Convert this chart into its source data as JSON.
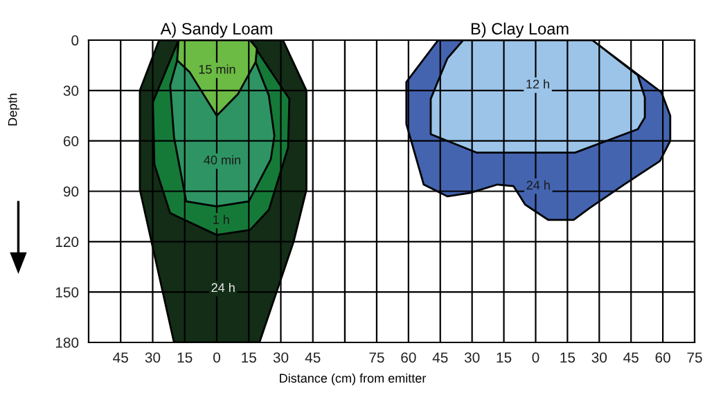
{
  "chart_data": [
    {
      "type": "area",
      "title": "A) Sandy Loam",
      "ylabel": "Depth",
      "xlabel": "Distance (cm) from emitter",
      "xlim": [
        -60,
        60
      ],
      "ylim": [
        180,
        0
      ],
      "xticks": [
        {
          "value": -45,
          "label": "45"
        },
        {
          "value": -30,
          "label": "30"
        },
        {
          "value": -15,
          "label": "15"
        },
        0,
        15,
        30,
        45
      ],
      "yticks": [
        0,
        30,
        60,
        90,
        120,
        150,
        180
      ],
      "grid": true,
      "legend": false,
      "series": [
        {
          "name": "24 h",
          "color": "#132d17",
          "x": [
            -27,
            -36,
            -36,
            -20,
            20,
            36,
            42,
            42,
            31
          ],
          "values": [
            0,
            30,
            89,
            180,
            180,
            120,
            89,
            30,
            0
          ]
        },
        {
          "name": "1 h",
          "color": "#157a38",
          "x": [
            -17.9,
            -29.9,
            -29.2,
            -21.8,
            0,
            15.6,
            24.4,
            33.4,
            34,
            15.6
          ],
          "values": [
            0,
            37,
            74,
            103,
            116,
            113,
            101,
            64,
            35,
            0
          ]
        },
        {
          "name": "40 min",
          "color": "#2e9464",
          "x": [
            -17.9,
            -18.5,
            -21.8,
            -20,
            -14.3,
            0,
            15,
            25.3,
            27,
            24.4,
            18.2,
            18.8,
            15.6
          ],
          "values": [
            0,
            12,
            27,
            58,
            96,
            99,
            96,
            71,
            57,
            33,
            13,
            5,
            0
          ]
        },
        {
          "name": "15 min",
          "color": "#6cbb44",
          "x": [
            -17.9,
            -18.5,
            -12.7,
            0,
            10,
            18.2,
            18.8,
            15.6
          ],
          "values": [
            0,
            12,
            19,
            45,
            32,
            13,
            5,
            0
          ]
        }
      ]
    },
    {
      "type": "area",
      "title": "B) Clay Loam",
      "tick_labels": "x",
      "xlim": [
        -90,
        75
      ],
      "ylim": [
        180,
        0
      ],
      "xticks": [
        {
          "value": -75,
          "label": "75"
        },
        {
          "value": -60,
          "label": "60"
        },
        {
          "value": -45,
          "label": "45"
        },
        {
          "value": -30,
          "label": "30"
        },
        {
          "value": -15,
          "label": "15"
        },
        0,
        15,
        30,
        45,
        60,
        75
      ],
      "yticks": [
        0,
        30,
        60,
        90,
        120,
        150,
        180
      ],
      "grid": true,
      "legend": false,
      "series": [
        {
          "name": "24 h",
          "color": "#4464b0",
          "x": [
            -46,
            -61,
            -61,
            -52.8,
            -41.7,
            -31,
            -18,
            -10.4,
            -4.9,
            5.9,
            17.9,
            25.4,
            41.7,
            58.6,
            63.5,
            63.5,
            59.3,
            26.7
          ],
          "values": [
            0,
            25,
            50,
            86,
            93,
            91,
            86,
            87,
            98,
            107,
            107,
            100,
            86,
            72,
            60,
            45,
            31,
            0
          ]
        },
        {
          "name": "12 h",
          "color": "#9cc4e8",
          "x": [
            -34.2,
            -41.7,
            -49.5,
            -49.5,
            -27.7,
            18.6,
            48.2,
            51.5,
            51.5,
            48.2,
            26.7
          ],
          "values": [
            0,
            11,
            35,
            56,
            67,
            67,
            53,
            46,
            34,
            21,
            0
          ]
        }
      ]
    }
  ]
}
